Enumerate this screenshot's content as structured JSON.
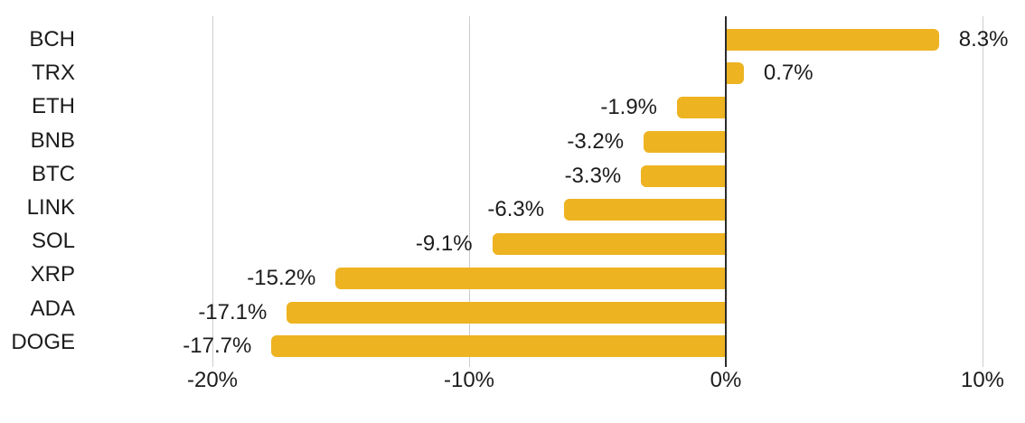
{
  "chart_data": {
    "type": "bar",
    "orientation": "horizontal",
    "title": "",
    "xlabel": "",
    "ylabel": "",
    "categories": [
      "BCH",
      "TRX",
      "ETH",
      "BNB",
      "BTC",
      "LINK",
      "SOL",
      "XRP",
      "ADA",
      "DOGE"
    ],
    "values": [
      8.3,
      0.7,
      -1.9,
      -3.2,
      -3.3,
      -6.3,
      -9.1,
      -15.2,
      -17.1,
      -17.7
    ],
    "value_labels": [
      "8.3%",
      "0.7%",
      "-1.9%",
      "-3.2%",
      "-3.3%",
      "-6.3%",
      "-9.1%",
      "-15.2%",
      "-17.1%",
      "-17.7%"
    ],
    "x_ticks": {
      "values": [
        -20,
        -10,
        0,
        10
      ],
      "labels": [
        "-20%",
        "-10%",
        "0%",
        "10%"
      ]
    },
    "xlim": [
      -24,
      11.7
    ],
    "grid": true,
    "legend": false,
    "zero_baseline": true,
    "colors": {
      "bar": "#EDB321",
      "grid": "#CCCCCC",
      "zero_line": "#2B2B2B",
      "text": "#1C1C1C",
      "background": "#FFFFFF"
    }
  }
}
